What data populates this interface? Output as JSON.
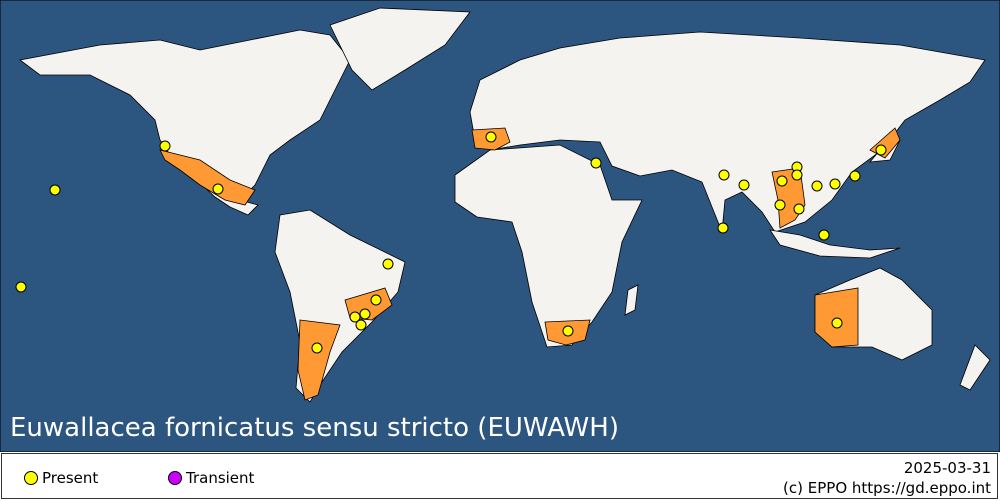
{
  "title": "Euwallacea fornicatus sensu stricto (EUWAWH)",
  "legend": {
    "items": [
      {
        "label": "Present",
        "color": "#ffff00"
      },
      {
        "label": "Transient",
        "color": "#cc00ff"
      }
    ]
  },
  "date": "2025-03-31",
  "copyright": "(c) EPPO https://gd.eppo.int",
  "colors": {
    "ocean": "#2c5580",
    "land": "#f5f3f0",
    "present_region": "#ff9933",
    "point": "#ffff00"
  }
}
